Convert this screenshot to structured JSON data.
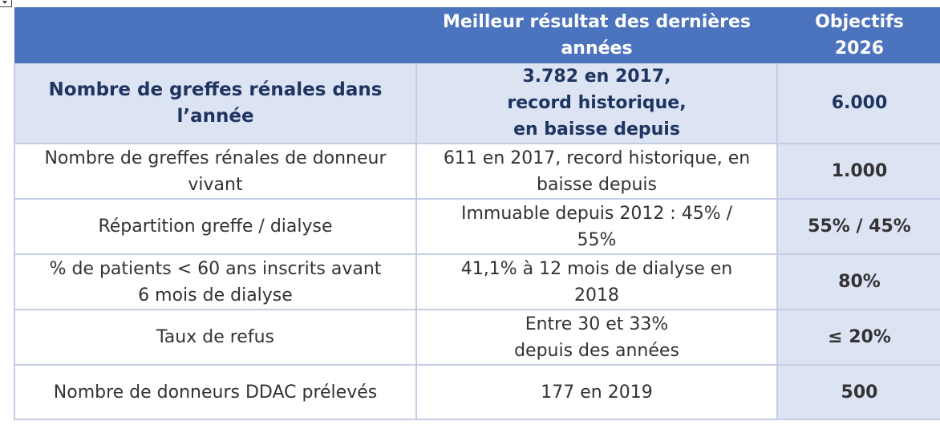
{
  "table": {
    "headers": [
      "",
      "Meilleur résultat des dernières\nannées",
      "Objectifs\n2026"
    ],
    "rows": [
      [
        "Nombre de greffes rénales dans\nl’année",
        "3.782 en 2017,\nrecord historique,\nen baisse depuis",
        "6.000"
      ],
      [
        "Nombre de greffes rénales de donneur\nvivant",
        "611 en 2017, record historique, en\nbaisse depuis",
        "1.000"
      ],
      [
        "Répartition greffe / dialyse",
        "Immuable depuis 2012 : 45% /\n55%",
        "55% / 45%"
      ],
      [
        "% de patients < 60 ans inscrits avant\n6 mois de dialyse",
        "41,1% à 12 mois de dialyse en\n2018",
        "80%"
      ],
      [
        "Taux de refus",
        "Entre 30 et 33%\ndepuis des années",
        "≤ 20%"
      ],
      [
        "Nombre de donneurs DDAC prélevés",
        "177 en 2019",
        "500"
      ]
    ]
  },
  "colors": {
    "header_bg": "#4c73be",
    "highlight_bg": "#dce3f3",
    "border": "#c5cde6",
    "emphasis_text": "#1f3561"
  }
}
